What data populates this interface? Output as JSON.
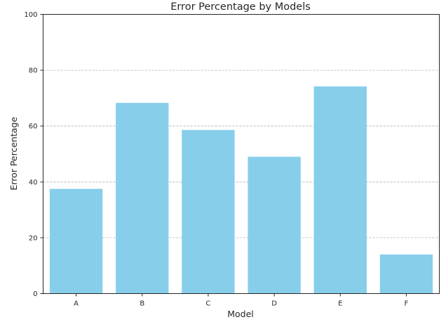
{
  "chart_data": {
    "type": "bar",
    "title": "Error Percentage by Models",
    "xlabel": "Model",
    "ylabel": "Error Percentage",
    "categories": [
      "A",
      "B",
      "C",
      "D",
      "E",
      "F"
    ],
    "values": [
      37.5,
      68.3,
      58.6,
      49.0,
      74.2,
      14.0
    ],
    "ylim": [
      0,
      100
    ],
    "yticks": [
      "0",
      "20",
      "40",
      "60",
      "80",
      "100"
    ],
    "grid": "y-dashed",
    "bar_color": "#87ceeb",
    "grid_color": "#b0b0b0"
  }
}
